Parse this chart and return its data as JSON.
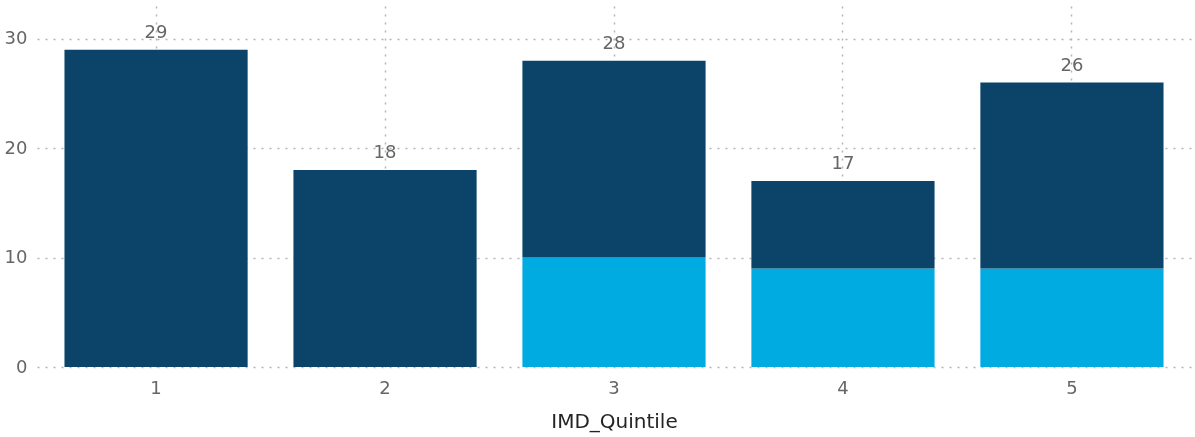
{
  "chart_data": {
    "type": "bar",
    "xlabel": "IMD_Quintile",
    "categories": [
      "1",
      "2",
      "3",
      "4",
      "5"
    ],
    "stacked": true,
    "series": [
      {
        "color": "#00abe2",
        "values": [
          null,
          null,
          10,
          9,
          9
        ]
      },
      {
        "color": "#0b4468",
        "values": [
          29,
          18,
          18,
          8,
          17
        ]
      }
    ],
    "totals": [
      "29",
      "18",
      "28",
      "17",
      "26"
    ],
    "ylim": [
      0,
      33
    ],
    "yticks": [
      0,
      10,
      20,
      30
    ],
    "grid": true
  }
}
